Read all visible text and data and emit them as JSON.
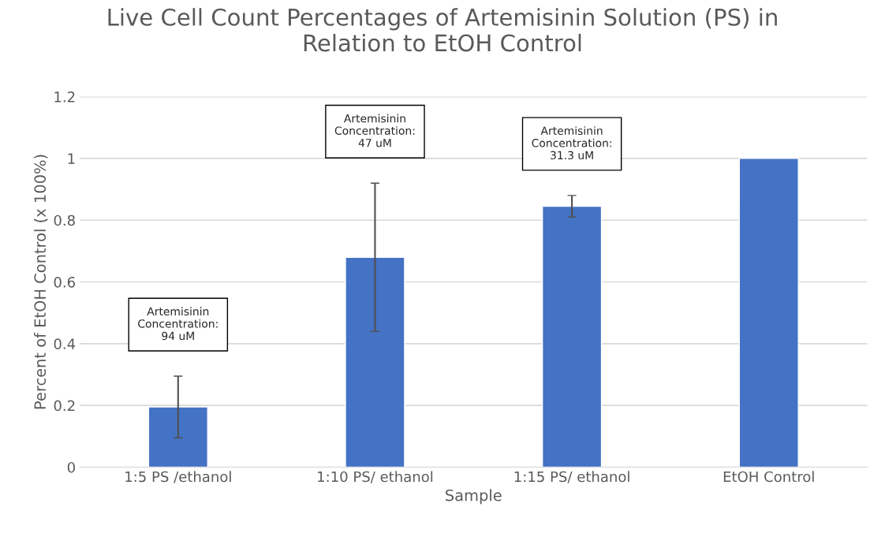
{
  "chart_data": {
    "type": "bar",
    "title": "Live Cell Count Percentages of Artemisinin Solution (PS) in\nRelation to EtOH Control",
    "xlabel": "Sample",
    "ylabel": "Percent of EtOH Control (x 100%)",
    "categories": [
      "1:5 PS /ethanol",
      "1:10 PS/ ethanol",
      "1:15 PS/ ethanol",
      "EtOH Control"
    ],
    "values": [
      0.195,
      0.68,
      0.845,
      1
    ],
    "errors": [
      0.1,
      0.24,
      0.035,
      null
    ],
    "color": "#4472c4",
    "ylim": [
      0,
      1.2
    ],
    "yticks": [
      0,
      0.2,
      0.4,
      0.6,
      0.8,
      1,
      1.2
    ],
    "grid": "y",
    "legend": false,
    "annotations": [
      "Artemisinin\nConcentration:\n94 uM",
      "Artemisinin\nConcentration:\n47 uM",
      "Artemisinin\nConcentration:\n31.3 uM"
    ]
  }
}
